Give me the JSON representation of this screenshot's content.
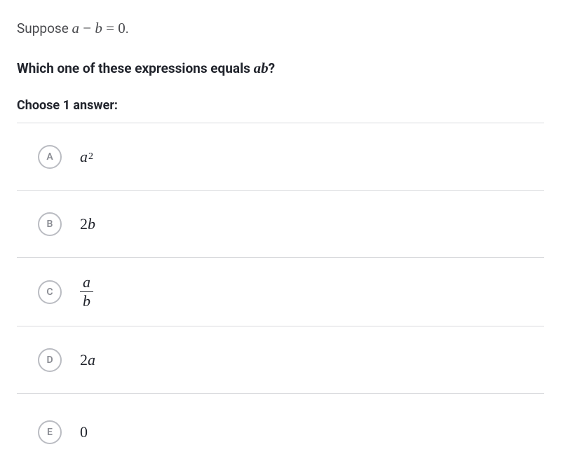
{
  "prompt": {
    "prefix": "Suppose ",
    "expr_var1": "a",
    "expr_op": " − ",
    "expr_var2": "b",
    "expr_eq": " = 0",
    "suffix": "."
  },
  "question": {
    "prefix": "Which one of these expressions equals ",
    "target_var1": "a",
    "target_var2": "b",
    "suffix": "?"
  },
  "choose": "Choose 1 answer:",
  "options": {
    "a": {
      "letter": "A",
      "base": "a",
      "sup": "2"
    },
    "b": {
      "letter": "B",
      "coef": "2",
      "var": "b"
    },
    "c": {
      "letter": "C",
      "num": "a",
      "den": "b"
    },
    "d": {
      "letter": "D",
      "coef": "2",
      "var": "a"
    },
    "e": {
      "letter": "E",
      "val": "0"
    }
  },
  "styling": {
    "text_color": "#21242c",
    "muted_color": "#48494d",
    "circle_border": "#babcc2",
    "circle_text": "#8a8c93",
    "divider": "#d9dadd",
    "background": "#ffffff",
    "body_fontsize": 19,
    "math_fontsize": 22
  }
}
